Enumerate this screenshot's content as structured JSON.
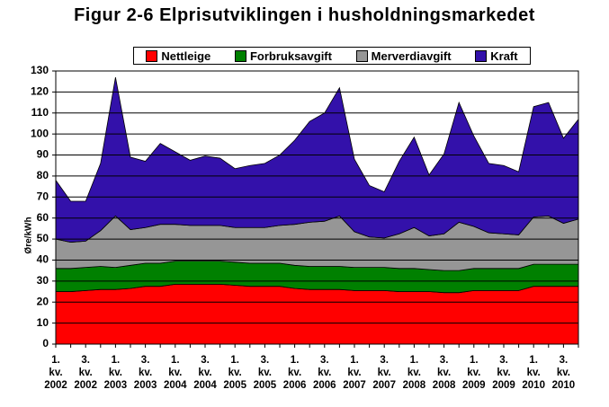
{
  "chart_data": {
    "type": "stacked_area",
    "title": "Figur 2-6 Elprisutviklingen i husholdningsmarkedet",
    "y_label": "Øre/kWh",
    "categories": [
      "1. kv. 2002",
      null,
      "3. kv. 2002",
      null,
      "1. kv. 2003",
      null,
      "3. kv. 2003",
      null,
      "1. kv. 2004",
      null,
      "3. kv. 2004",
      null,
      "1. kv. 2005",
      null,
      "3. kv. 2005",
      null,
      "1. kv. 2006",
      null,
      "3. kv. 2006",
      null,
      "1. kv. 2007",
      null,
      "3. kv. 2007",
      null,
      "1. kv. 2008",
      null,
      "3. kv. 2008",
      null,
      "1. kv. 2009",
      null,
      "3. kv. 2009",
      null,
      "1. kv. 2010",
      null,
      "3. kv. 2010",
      null
    ],
    "series": [
      {
        "name": "Nettleige",
        "color": "#ff0000",
        "values": [
          25,
          25,
          25.5,
          26,
          26,
          26.5,
          27.5,
          27.5,
          28.5,
          28.5,
          28.5,
          28.5,
          28,
          27.5,
          27.5,
          27.5,
          26.5,
          26,
          26,
          26,
          25.5,
          25.5,
          25.5,
          25,
          25,
          25,
          24.5,
          24.5,
          25.5,
          25.5,
          25.5,
          25.5,
          27.5,
          27.5,
          27.5,
          27.5
        ]
      },
      {
        "name": "Forbruksavgift",
        "color": "#008000",
        "values": [
          11,
          11,
          11,
          11,
          10.5,
          11,
          11,
          11,
          11,
          11,
          11,
          11,
          11,
          11,
          11,
          11,
          11,
          11,
          11,
          11,
          11,
          11,
          11,
          11,
          11,
          10.5,
          10.5,
          10.5,
          10.5,
          10.5,
          10.5,
          10.5,
          10.5,
          10.5,
          10.5,
          10.5
        ]
      },
      {
        "name": "Merverdiavgift",
        "color": "#969696",
        "values": [
          14,
          12.5,
          12.5,
          17,
          24.5,
          17,
          17,
          18.5,
          17.5,
          17,
          17,
          17,
          16.5,
          17,
          17,
          18,
          19.5,
          21,
          21.5,
          24,
          17,
          14.5,
          14,
          16.5,
          19.5,
          16,
          17.5,
          23,
          20,
          17,
          16.5,
          16,
          22.5,
          23,
          19.5,
          21.5
        ]
      },
      {
        "name": "Kraft",
        "color": "#3311aa",
        "values": [
          28,
          19.5,
          19,
          32,
          66,
          34.5,
          31.5,
          38.5,
          34.5,
          31,
          33,
          32,
          28,
          29.5,
          30.5,
          33.5,
          40,
          48,
          51.5,
          61,
          34.5,
          24.5,
          22,
          34.5,
          43,
          29,
          38,
          57,
          43,
          33,
          32.5,
          30,
          52.5,
          54,
          40.5,
          47.5
        ]
      }
    ],
    "ylim": [
      0,
      130
    ],
    "yticks": [
      0,
      10,
      20,
      30,
      40,
      50,
      60,
      70,
      80,
      90,
      100,
      110,
      120,
      130
    ],
    "grid": true
  }
}
